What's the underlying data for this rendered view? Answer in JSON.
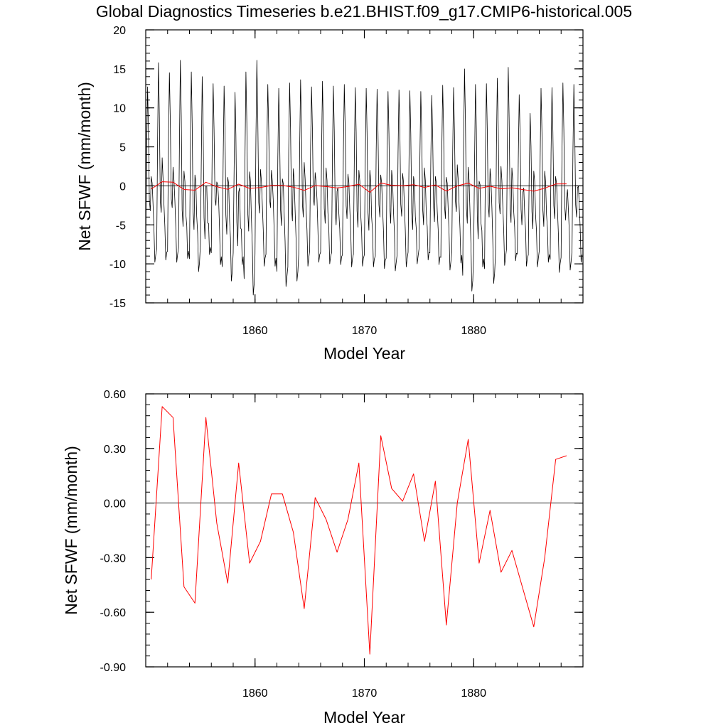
{
  "figure": {
    "title": "Global Diagnostics Timeseries b.e21.BHIST.f09_g17.CMIP6-historical.005"
  },
  "chart_data": [
    {
      "type": "line",
      "xlabel": "Model Year",
      "ylabel": "Net SFWF (mm/month)",
      "xlim": [
        1850,
        1890
      ],
      "ylim": [
        -15,
        20
      ],
      "x_ticks": [
        1860,
        1870,
        1880
      ],
      "y_ticks": [
        "20",
        "15",
        "10",
        "5",
        "0",
        "-5",
        "-10",
        "-15"
      ],
      "zero_line": true,
      "grid": false,
      "series": [
        {
          "kind": "monthly",
          "color": "#000000",
          "x_start": 1850.0,
          "x_step": 0.08333,
          "annual_peaks": [
            12.7,
            15.8,
            14.5,
            16.1,
            14.6,
            14.0,
            13.1,
            12.8,
            12.0,
            14.6,
            16.1,
            13.0,
            12.5,
            13.2,
            13.6,
            12.7,
            13.4,
            12.8,
            13.0,
            12.6,
            12.5,
            12.4,
            12.1,
            12.3,
            12.2,
            12.1,
            11.6,
            12.9,
            12.6,
            15.0,
            13.0,
            13.1,
            13.8,
            15.2,
            11.7,
            9.3,
            12.5,
            12.6,
            13.2,
            13.0
          ],
          "annual_troughs": [
            -9.8,
            -9.5,
            -9.8,
            -9.3,
            -11.0,
            -8.8,
            -10.1,
            -12.2,
            -10.1,
            -14.0,
            -10.3,
            -10.3,
            -12.9,
            -12.2,
            -10.3,
            -9.8,
            -10.0,
            -10.1,
            -10.4,
            -10.3,
            -10.4,
            -10.6,
            -10.9,
            -10.4,
            -10.0,
            -9.5,
            -10.1,
            -10.8,
            -9.9,
            -13.5,
            -10.4,
            -12.5,
            -10.2,
            -9.6,
            -10.3,
            -10.4,
            -9.8,
            -11.1,
            -10.8,
            -9.8
          ],
          "secondary_peaks": [
            1.2,
            3.6,
            2.4,
            1.9,
            1.4,
            0.0,
            0.5,
            1.1,
            -0.8,
            1.8,
            2.1,
            2.0,
            0.9,
            2.2,
            3.0,
            1.7,
            2.3,
            -0.7,
            1.5,
            2.0,
            2.0,
            1.4,
            2.0,
            1.6,
            1.2,
            2.3,
            1.2,
            1.1,
            2.7,
            2.4,
            0.6,
            2.2,
            2.5,
            2.3,
            -0.9,
            1.9,
            1.9,
            1.2,
            -1.6,
            -0.2
          ],
          "secondary_troughs": [
            -3.2,
            -3.4,
            -2.8,
            -5.2,
            -5.6,
            -6.8,
            -2.5,
            -6.2,
            -7.7,
            -5.8,
            -3.5,
            -2.8,
            -5.1,
            -4.5,
            -4.0,
            -2.5,
            -4.8,
            -5.0,
            -4.2,
            -5.3,
            -5.7,
            -4.0,
            -4.8,
            -3.9,
            -5.6,
            -5.0,
            -4.6,
            -4.2,
            -3.3,
            -4.8,
            -6.8,
            -4.0,
            -3.6,
            -4.7,
            -5.0,
            -5.5,
            -5.2,
            -4.2,
            -4.4,
            -4.0
          ]
        },
        {
          "kind": "annual mean",
          "color": "#ff0000",
          "x": [
            1850.5,
            1851.5,
            1852.5,
            1853.5,
            1854.5,
            1855.5,
            1856.5,
            1857.5,
            1858.5,
            1859.5,
            1860.5,
            1861.5,
            1862.5,
            1863.5,
            1864.5,
            1865.5,
            1866.5,
            1867.5,
            1868.5,
            1869.5,
            1870.5,
            1871.5,
            1872.5,
            1873.5,
            1874.5,
            1875.5,
            1876.5,
            1877.5,
            1878.5,
            1879.5,
            1880.5,
            1881.5,
            1882.5,
            1883.5,
            1884.5,
            1885.5,
            1886.5,
            1887.5,
            1888.5
          ],
          "values": [
            -0.42,
            0.53,
            0.47,
            -0.46,
            -0.55,
            0.47,
            -0.11,
            -0.44,
            0.22,
            -0.33,
            -0.21,
            0.05,
            0.05,
            -0.16,
            -0.58,
            0.03,
            -0.09,
            -0.27,
            -0.09,
            0.22,
            -0.83,
            0.37,
            0.08,
            0.01,
            0.16,
            -0.21,
            0.12,
            -0.67,
            0.0,
            0.35,
            -0.33,
            -0.04,
            -0.38,
            -0.26,
            -0.47,
            -0.68,
            -0.3,
            0.24,
            0.26
          ]
        }
      ]
    },
    {
      "type": "line",
      "xlabel": "Model Year",
      "ylabel": "Net SFWF (mm/month)",
      "xlim": [
        1850,
        1890
      ],
      "ylim": [
        -0.9,
        0.6
      ],
      "x_ticks": [
        1860,
        1870,
        1880
      ],
      "y_ticks": [
        "0.60",
        "0.30",
        "0.00",
        "-0.30",
        "-0.60",
        "-0.90"
      ],
      "zero_line": true,
      "grid": false,
      "series": [
        {
          "kind": "annual mean",
          "color": "#ff0000",
          "x": [
            1850.5,
            1851.5,
            1852.5,
            1853.5,
            1854.5,
            1855.5,
            1856.5,
            1857.5,
            1858.5,
            1859.5,
            1860.5,
            1861.5,
            1862.5,
            1863.5,
            1864.5,
            1865.5,
            1866.5,
            1867.5,
            1868.5,
            1869.5,
            1870.5,
            1871.5,
            1872.5,
            1873.5,
            1874.5,
            1875.5,
            1876.5,
            1877.5,
            1878.5,
            1879.5,
            1880.5,
            1881.5,
            1882.5,
            1883.5,
            1884.5,
            1885.5,
            1886.5,
            1887.5,
            1888.5
          ],
          "values": [
            -0.42,
            0.53,
            0.47,
            -0.46,
            -0.55,
            0.47,
            -0.11,
            -0.44,
            0.22,
            -0.33,
            -0.21,
            0.05,
            0.05,
            -0.16,
            -0.58,
            0.03,
            -0.09,
            -0.27,
            -0.09,
            0.22,
            -0.83,
            0.37,
            0.08,
            0.01,
            0.16,
            -0.21,
            0.12,
            -0.67,
            0.0,
            0.35,
            -0.33,
            -0.04,
            -0.38,
            -0.26,
            -0.47,
            -0.68,
            -0.3,
            0.24,
            0.26
          ]
        }
      ]
    }
  ]
}
